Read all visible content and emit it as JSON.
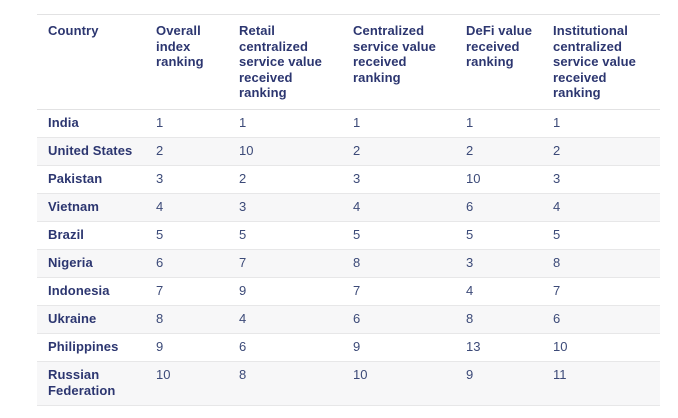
{
  "colors": {
    "header_text": "#2c3670",
    "cell_text": "#3c4a78",
    "row_stripe": "#f7f7f8",
    "divider": "#e2e2e3",
    "background": "#ffffff"
  },
  "chart_data": {
    "type": "table",
    "columns": [
      {
        "key": "country",
        "label": "Country"
      },
      {
        "key": "overall",
        "label": "Overall index ranking"
      },
      {
        "key": "retail",
        "label": "Retail centralized service value received ranking"
      },
      {
        "key": "centralized",
        "label": "Centralized service value received ranking"
      },
      {
        "key": "defi",
        "label": "DeFi value received ranking"
      },
      {
        "key": "institutional",
        "label": "Institutional centralized service value received ranking"
      }
    ],
    "rows": [
      {
        "country": "India",
        "overall": "1",
        "retail": "1",
        "centralized": "1",
        "defi": "1",
        "institutional": "1"
      },
      {
        "country": "United States",
        "overall": "2",
        "retail": "10",
        "centralized": "2",
        "defi": "2",
        "institutional": "2"
      },
      {
        "country": "Pakistan",
        "overall": "3",
        "retail": "2",
        "centralized": "3",
        "defi": "10",
        "institutional": "3"
      },
      {
        "country": "Vietnam",
        "overall": "4",
        "retail": "3",
        "centralized": "4",
        "defi": "6",
        "institutional": "4"
      },
      {
        "country": "Brazil",
        "overall": "5",
        "retail": "5",
        "centralized": "5",
        "defi": "5",
        "institutional": "5"
      },
      {
        "country": "Nigeria",
        "overall": "6",
        "retail": "7",
        "centralized": "8",
        "defi": "3",
        "institutional": "8"
      },
      {
        "country": "Indonesia",
        "overall": "7",
        "retail": "9",
        "centralized": "7",
        "defi": "4",
        "institutional": "7"
      },
      {
        "country": "Ukraine",
        "overall": "8",
        "retail": "4",
        "centralized": "6",
        "defi": "8",
        "institutional": "6"
      },
      {
        "country": "Philippines",
        "overall": "9",
        "retail": "6",
        "centralized": "9",
        "defi": "13",
        "institutional": "10"
      },
      {
        "country": "Russian Federation",
        "overall": "10",
        "retail": "8",
        "centralized": "10",
        "defi": "9",
        "institutional": "11"
      }
    ]
  }
}
